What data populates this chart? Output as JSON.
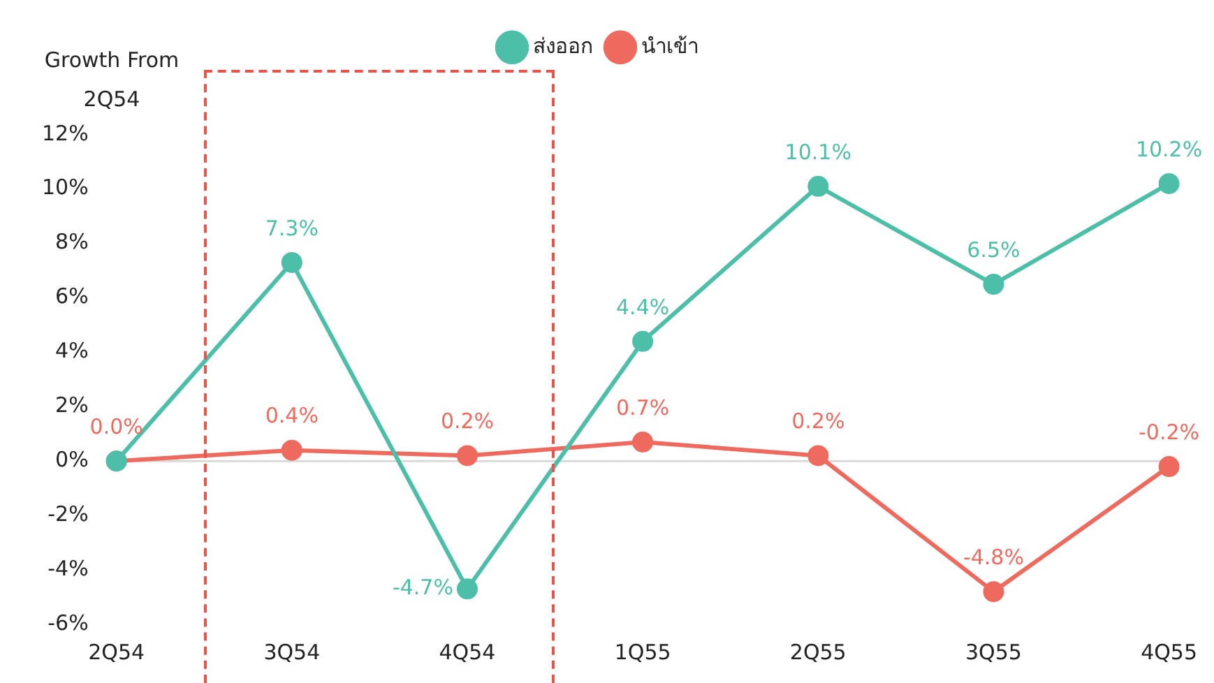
{
  "chart_data": {
    "type": "line",
    "ylabel": "Growth From 2Q54",
    "categories": [
      "2Q54",
      "3Q54",
      "4Q54",
      "1Q55",
      "2Q55",
      "3Q55",
      "4Q55"
    ],
    "series": [
      {
        "name": "ส่งออก",
        "color": "#4dbfa8",
        "values": [
          0,
          7.3,
          -4.7,
          4.4,
          10.1,
          6.5,
          10.2
        ],
        "value_labels": [
          null,
          "7.3%",
          "-4.7%",
          "4.4%",
          "10.1%",
          "6.5%",
          "10.2%"
        ]
      },
      {
        "name": "นำเข้า",
        "color": "#ee6a5f",
        "values": [
          0,
          0.4,
          0.2,
          0.7,
          0.2,
          -4.8,
          -0.2
        ],
        "value_labels": [
          "0.0%",
          "0.4%",
          "0.2%",
          "0.7%",
          "0.2%",
          "-4.8%",
          "-0.2%"
        ]
      }
    ],
    "ylim": [
      -6,
      12
    ],
    "yticks": [
      {
        "value": -6,
        "label": "-6%"
      },
      {
        "value": -4,
        "label": "-4%"
      },
      {
        "value": -2,
        "label": "-2%"
      },
      {
        "value": 0,
        "label": "0%"
      },
      {
        "value": 2,
        "label": "2%"
      },
      {
        "value": 4,
        "label": "4%"
      },
      {
        "value": 6,
        "label": "6%"
      },
      {
        "value": 8,
        "label": "8%"
      },
      {
        "value": 10,
        "label": "10%"
      },
      {
        "value": 12,
        "label": "12%"
      }
    ],
    "ref_lines": [
      {
        "axis": "y",
        "value": 0,
        "color": "#d9d9d9"
      }
    ],
    "grid": false,
    "legend": "top",
    "marker": "circle",
    "line_style": "solid"
  }
}
